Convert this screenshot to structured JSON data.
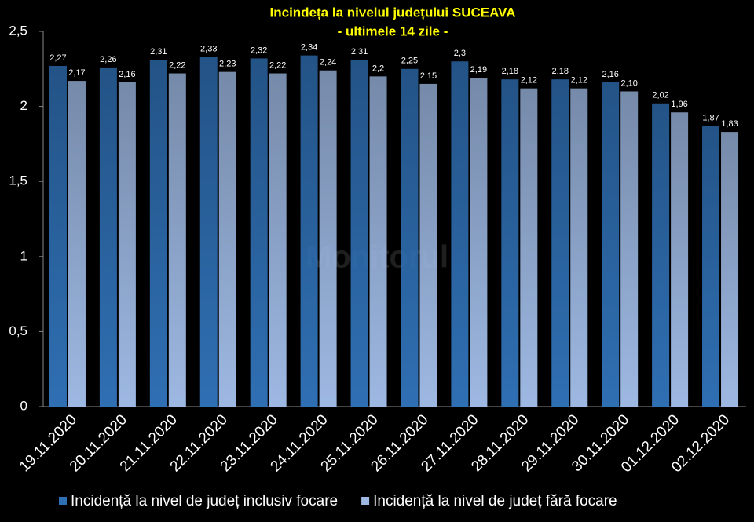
{
  "chart_data": {
    "type": "bar",
    "title": "Incindeța la nivelul județului SUCEAVA",
    "subtitle": "- ultimele 14 zile -",
    "watermark": "Monitorul",
    "categories": [
      "19.11.2020",
      "20.11.2020",
      "21.11.2020",
      "22.11.2020",
      "23.11.2020",
      "24.11.2020",
      "25.11.2020",
      "26.11.2020",
      "27.11.2020",
      "28.11.2020",
      "29.11.2020",
      "30.11.2020",
      "01.12.2020",
      "02.12.2020"
    ],
    "series": [
      {
        "name": "Incidență la nivel de județ inclusiv focare",
        "color": "#2f6fb3",
        "values": [
          2.27,
          2.26,
          2.31,
          2.33,
          2.32,
          2.34,
          2.31,
          2.25,
          2.3,
          2.18,
          2.18,
          2.16,
          2.02,
          1.87
        ],
        "value_labels": [
          "2,27",
          "2,26",
          "2,31",
          "2,33",
          "2,32",
          "2,34",
          "2,31",
          "2,25",
          "2,3",
          "2,18",
          "2,18",
          "2,16",
          "2,02",
          "1,87"
        ]
      },
      {
        "name": "Incidență la nivel de județ fără focare",
        "color": "#9db8e2",
        "values": [
          2.17,
          2.16,
          2.22,
          2.23,
          2.22,
          2.24,
          2.2,
          2.15,
          2.19,
          2.12,
          2.12,
          2.1,
          1.96,
          1.83
        ],
        "value_labels": [
          "2,17",
          "2,16",
          "2,22",
          "2,23",
          "2,22",
          "2,24",
          "2,2",
          "2,15",
          "2,19",
          "2,12",
          "2,12",
          "2,10",
          "1,96",
          "1,83"
        ]
      }
    ],
    "ylim": [
      0,
      2.5
    ],
    "yticks": [
      0,
      {
        "value": 0.5,
        "label": "0,5"
      },
      1,
      {
        "value": 1.5,
        "label": "1,5"
      },
      2,
      {
        "value": 2.5,
        "label": "2,5"
      }
    ],
    "grid": false
  }
}
